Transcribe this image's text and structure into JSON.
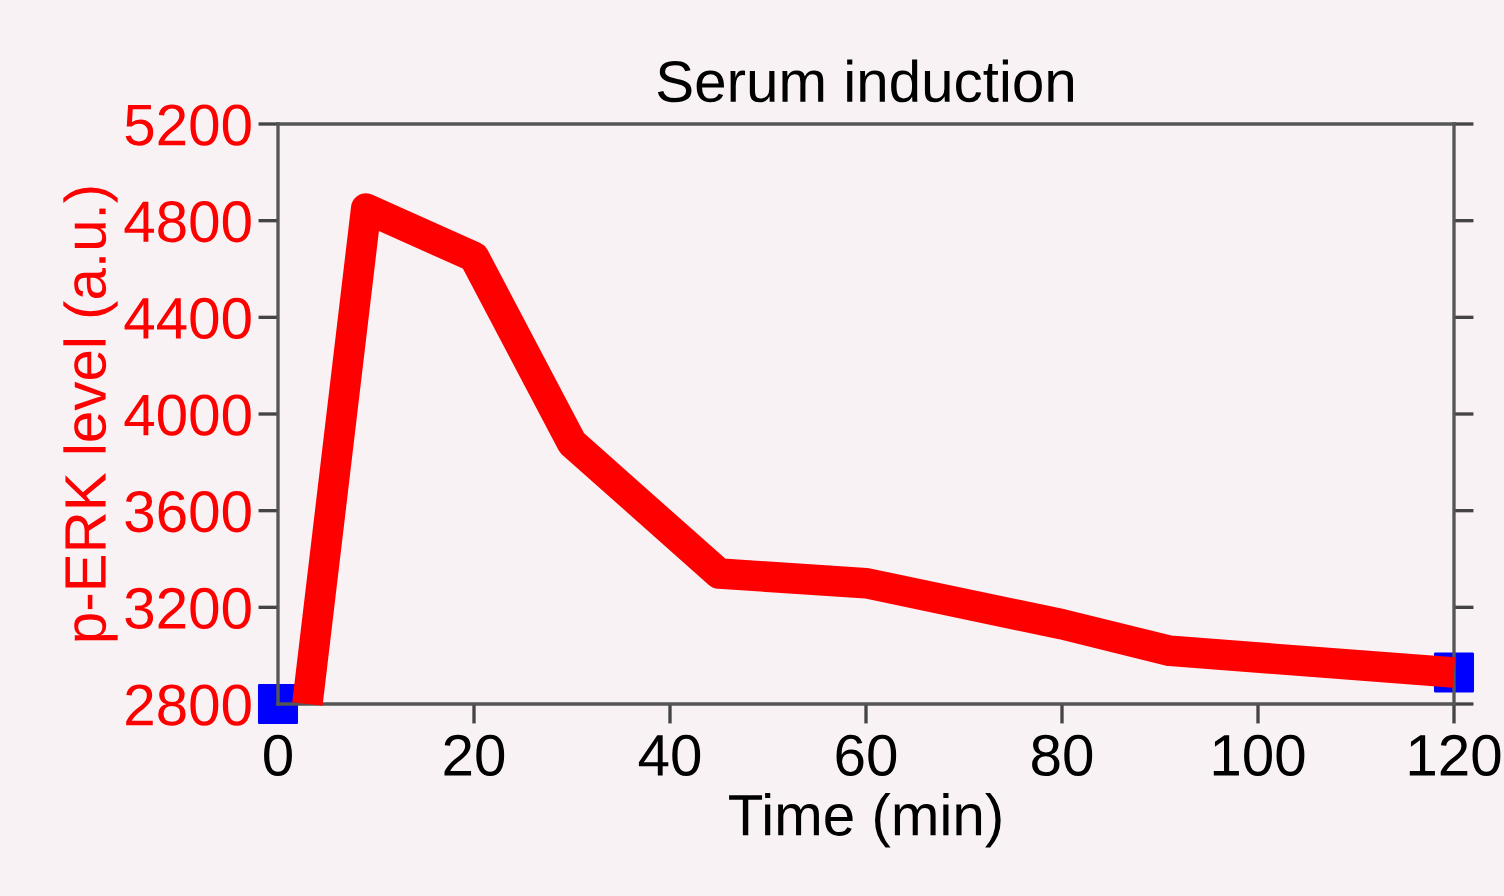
{
  "chart_data": {
    "type": "line",
    "title": "Serum induction",
    "xlabel": "Time (min)",
    "ylabel": "p-ERK level (a.u.)",
    "series": [
      {
        "type": "scatter",
        "color": "#0000ff",
        "marker": "square",
        "x": [
          0,
          120
        ],
        "values": [
          2800,
          2930
        ]
      },
      {
        "color": "#ff0000",
        "marker": "none",
        "line_style": "solid",
        "x": [
          3,
          9,
          20,
          30,
          45,
          60,
          80,
          91,
          120
        ],
        "values": [
          2800,
          4850,
          4650,
          3880,
          3340,
          3300,
          3130,
          3020,
          2930
        ]
      }
    ],
    "xlim": [
      0,
      120
    ],
    "xticks": [
      0,
      20,
      40,
      60,
      80,
      100,
      120
    ],
    "ylim": [
      2800,
      5200
    ],
    "yticks": [
      2800,
      3200,
      3600,
      4000,
      4400,
      4800,
      5200
    ],
    "grid": false,
    "legend": false
  }
}
